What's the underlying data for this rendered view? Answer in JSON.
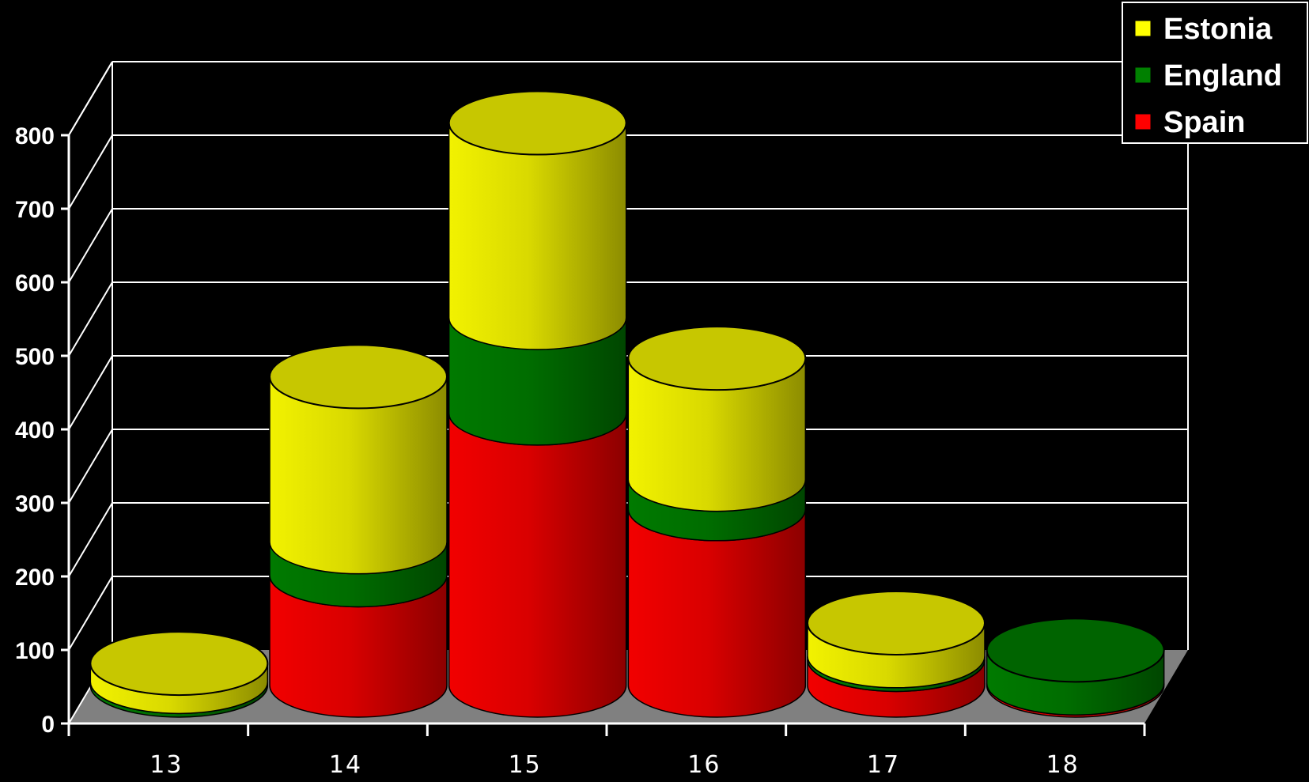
{
  "chart_data": {
    "type": "bar",
    "stacked": true,
    "style": "3d-cylinder",
    "categories": [
      "13",
      "14",
      "15",
      "16",
      "17",
      "18"
    ],
    "series": [
      {
        "name": "Spain",
        "color": "#ff0000",
        "values": [
          0,
          150,
          370,
          240,
          35,
          3
        ]
      },
      {
        "name": "England",
        "color": "#008000",
        "values": [
          5,
          45,
          130,
          40,
          5,
          45
        ]
      },
      {
        "name": "Estonia",
        "color": "#ffff00",
        "values": [
          25,
          225,
          265,
          165,
          45,
          0
        ]
      }
    ],
    "yticks": [
      0,
      100,
      200,
      300,
      400,
      500,
      600,
      700,
      800
    ],
    "ylim": [
      0,
      800
    ],
    "grid": true,
    "legend": {
      "position": "top-right",
      "order": [
        "Estonia",
        "England",
        "Spain"
      ]
    },
    "colors": {
      "background": "#000000",
      "floor": "#808080",
      "axis": "#ffffff"
    }
  }
}
